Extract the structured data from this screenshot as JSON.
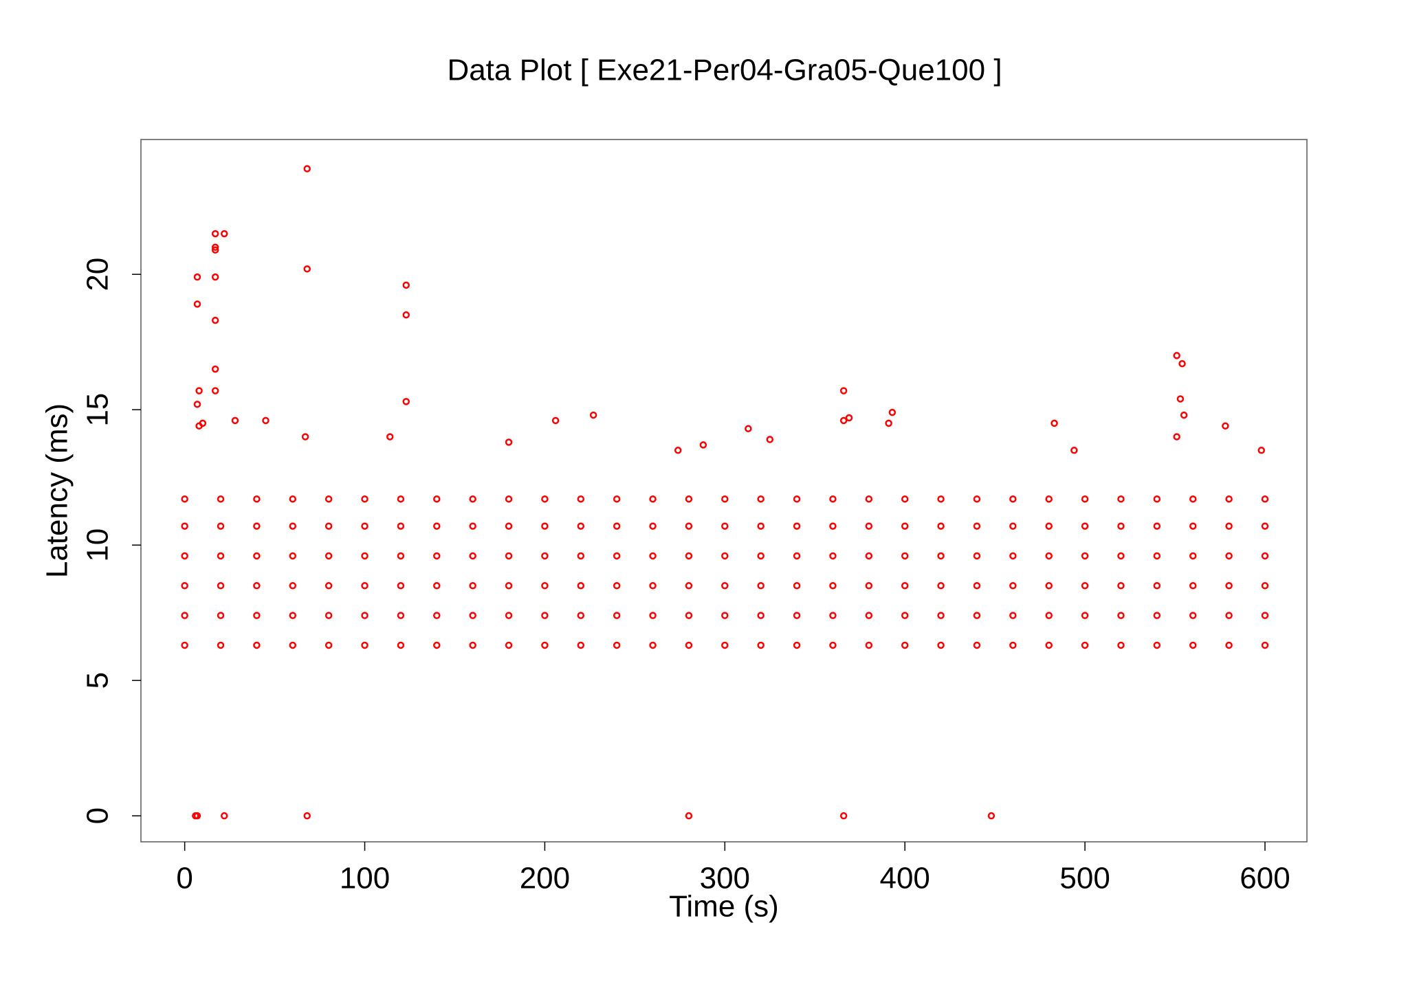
{
  "chart_data": {
    "type": "scatter",
    "title": "Data Plot [ Exe21-Per04-Gra05-Que100 ]",
    "x_label": "Time (s)",
    "y_label": "Latency (ms)",
    "color": "#ff0000",
    "xlim": [
      -24.3,
      623.3
    ],
    "ylim": [
      -0.96,
      24.98
    ],
    "xticks": [
      0,
      100,
      200,
      300,
      400,
      500,
      600
    ],
    "yticks": [
      0,
      5,
      10,
      15,
      20
    ],
    "x": [
      0,
      0,
      0,
      0,
      0,
      0,
      20,
      20,
      20,
      20,
      20,
      20,
      40,
      40,
      40,
      40,
      40,
      40,
      60,
      60,
      60,
      60,
      60,
      60,
      80,
      80,
      80,
      80,
      80,
      80,
      100,
      100,
      100,
      100,
      100,
      100,
      120,
      120,
      120,
      120,
      120,
      120,
      140,
      140,
      140,
      140,
      140,
      140,
      160,
      160,
      160,
      160,
      160,
      160,
      180,
      180,
      180,
      180,
      180,
      180,
      200,
      200,
      200,
      200,
      200,
      200,
      220,
      220,
      220,
      220,
      220,
      220,
      240,
      240,
      240,
      240,
      240,
      240,
      260,
      260,
      260,
      260,
      260,
      260,
      280,
      280,
      280,
      280,
      280,
      280,
      300,
      300,
      300,
      300,
      300,
      300,
      320,
      320,
      320,
      320,
      320,
      320,
      340,
      340,
      340,
      340,
      340,
      340,
      360,
      360,
      360,
      360,
      360,
      360,
      380,
      380,
      380,
      380,
      380,
      380,
      400,
      400,
      400,
      400,
      400,
      400,
      420,
      420,
      420,
      420,
      420,
      420,
      440,
      440,
      440,
      440,
      440,
      440,
      460,
      460,
      460,
      460,
      460,
      460,
      480,
      480,
      480,
      480,
      480,
      480,
      500,
      500,
      500,
      500,
      500,
      500,
      520,
      520,
      520,
      520,
      520,
      520,
      540,
      540,
      540,
      540,
      540,
      540,
      560,
      560,
      560,
      560,
      560,
      560,
      580,
      580,
      580,
      580,
      580,
      580,
      600,
      600,
      600,
      600,
      600,
      600,
      6,
      7,
      22,
      68,
      280,
      366,
      448,
      68,
      17,
      22,
      17,
      17,
      7,
      17,
      68,
      7,
      17,
      17,
      17,
      8,
      7,
      8,
      10,
      123,
      123,
      123,
      28,
      45,
      114,
      206,
      227,
      366,
      366,
      369,
      391,
      393,
      483,
      551,
      554,
      553,
      555,
      551,
      578,
      313,
      325,
      598,
      274,
      288,
      67,
      180,
      494
    ],
    "y": [
      6.3,
      7.4,
      8.5,
      9.6,
      10.7,
      11.7,
      6.3,
      7.4,
      8.5,
      9.6,
      10.7,
      11.7,
      6.3,
      7.4,
      8.5,
      9.6,
      10.7,
      11.7,
      6.3,
      7.4,
      8.5,
      9.6,
      10.7,
      11.7,
      6.3,
      7.4,
      8.5,
      9.6,
      10.7,
      11.7,
      6.3,
      7.4,
      8.5,
      9.6,
      10.7,
      11.7,
      6.3,
      7.4,
      8.5,
      9.6,
      10.7,
      11.7,
      6.3,
      7.4,
      8.5,
      9.6,
      10.7,
      11.7,
      6.3,
      7.4,
      8.5,
      9.6,
      10.7,
      11.7,
      6.3,
      7.4,
      8.5,
      9.6,
      10.7,
      11.7,
      6.3,
      7.4,
      8.5,
      9.6,
      10.7,
      11.7,
      6.3,
      7.4,
      8.5,
      9.6,
      10.7,
      11.7,
      6.3,
      7.4,
      8.5,
      9.6,
      10.7,
      11.7,
      6.3,
      7.4,
      8.5,
      9.6,
      10.7,
      11.7,
      6.3,
      7.4,
      8.5,
      9.6,
      10.7,
      11.7,
      6.3,
      7.4,
      8.5,
      9.6,
      10.7,
      11.7,
      6.3,
      7.4,
      8.5,
      9.6,
      10.7,
      11.7,
      6.3,
      7.4,
      8.5,
      9.6,
      10.7,
      11.7,
      6.3,
      7.4,
      8.5,
      9.6,
      10.7,
      11.7,
      6.3,
      7.4,
      8.5,
      9.6,
      10.7,
      11.7,
      6.3,
      7.4,
      8.5,
      9.6,
      10.7,
      11.7,
      6.3,
      7.4,
      8.5,
      9.6,
      10.7,
      11.7,
      6.3,
      7.4,
      8.5,
      9.6,
      10.7,
      11.7,
      6.3,
      7.4,
      8.5,
      9.6,
      10.7,
      11.7,
      6.3,
      7.4,
      8.5,
      9.6,
      10.7,
      11.7,
      6.3,
      7.4,
      8.5,
      9.6,
      10.7,
      11.7,
      6.3,
      7.4,
      8.5,
      9.6,
      10.7,
      11.7,
      6.3,
      7.4,
      8.5,
      9.6,
      10.7,
      11.7,
      6.3,
      7.4,
      8.5,
      9.6,
      10.7,
      11.7,
      6.3,
      7.4,
      8.5,
      9.6,
      10.7,
      11.7,
      6.3,
      7.4,
      8.5,
      9.6,
      10.7,
      11.7,
      0,
      0,
      0,
      0,
      0,
      0,
      0,
      23.9,
      21.5,
      21.5,
      21,
      20.9,
      19.9,
      19.9,
      20.2,
      18.9,
      18.3,
      16.5,
      15.7,
      15.7,
      15.2,
      14.4,
      14.5,
      19.6,
      18.5,
      15.3,
      14.6,
      14.6,
      14,
      14.6,
      14.8,
      15.7,
      14.6,
      14.7,
      14.5,
      14.9,
      14.5,
      17,
      16.7,
      15.4,
      14.8,
      14,
      14.4,
      14.3,
      13.9,
      13.5,
      13.5,
      13.7,
      14,
      13.8,
      13.5
    ]
  }
}
